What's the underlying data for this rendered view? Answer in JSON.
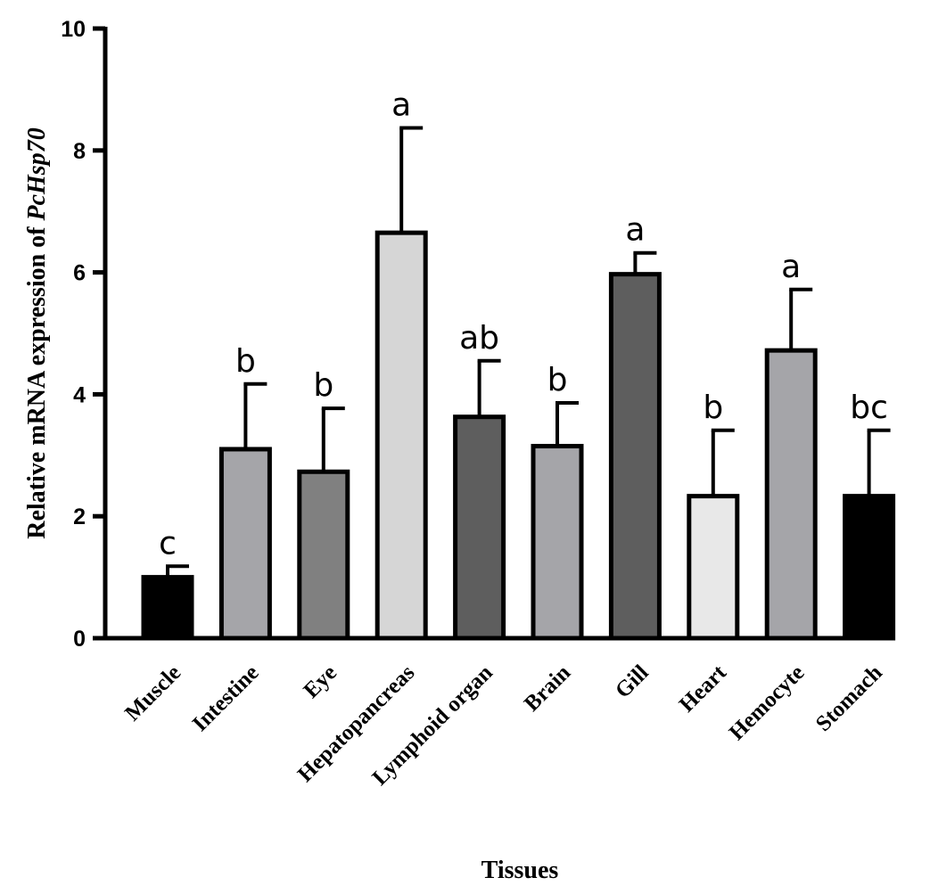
{
  "chart_data": {
    "type": "bar",
    "categories": [
      "Muscle",
      "Intestine",
      "Eye",
      "Hepatopancreas",
      "Lymphoid organ",
      "Brain",
      "Gill",
      "Heart",
      "Hemocyte",
      "Stomach"
    ],
    "values": [
      1.0,
      3.1,
      2.73,
      6.65,
      3.63,
      3.15,
      5.97,
      2.33,
      4.72,
      2.33
    ],
    "errors": [
      0.18,
      1.07,
      1.04,
      1.72,
      0.92,
      0.71,
      0.35,
      1.08,
      1.0,
      1.08
    ],
    "significance_labels": [
      "c",
      "b",
      "b",
      "a",
      "ab",
      "b",
      "a",
      "b",
      "a",
      "bc"
    ],
    "bar_colors": [
      "#000000",
      "#a5a5a9",
      "#808080",
      "#d6d6d6",
      "#5e5e5e",
      "#a5a5a9",
      "#5e5e5e",
      "#e8e8e8",
      "#a5a5a9",
      "#000000"
    ],
    "xlabel": "Tissues",
    "ylabel_prefix": "Relative mRNA expression of ",
    "ylabel_gene": "PcHsp70",
    "ylim": [
      0,
      10
    ],
    "yticks": [
      0,
      2,
      4,
      6,
      8,
      10
    ],
    "grid": false,
    "legend": "none"
  }
}
